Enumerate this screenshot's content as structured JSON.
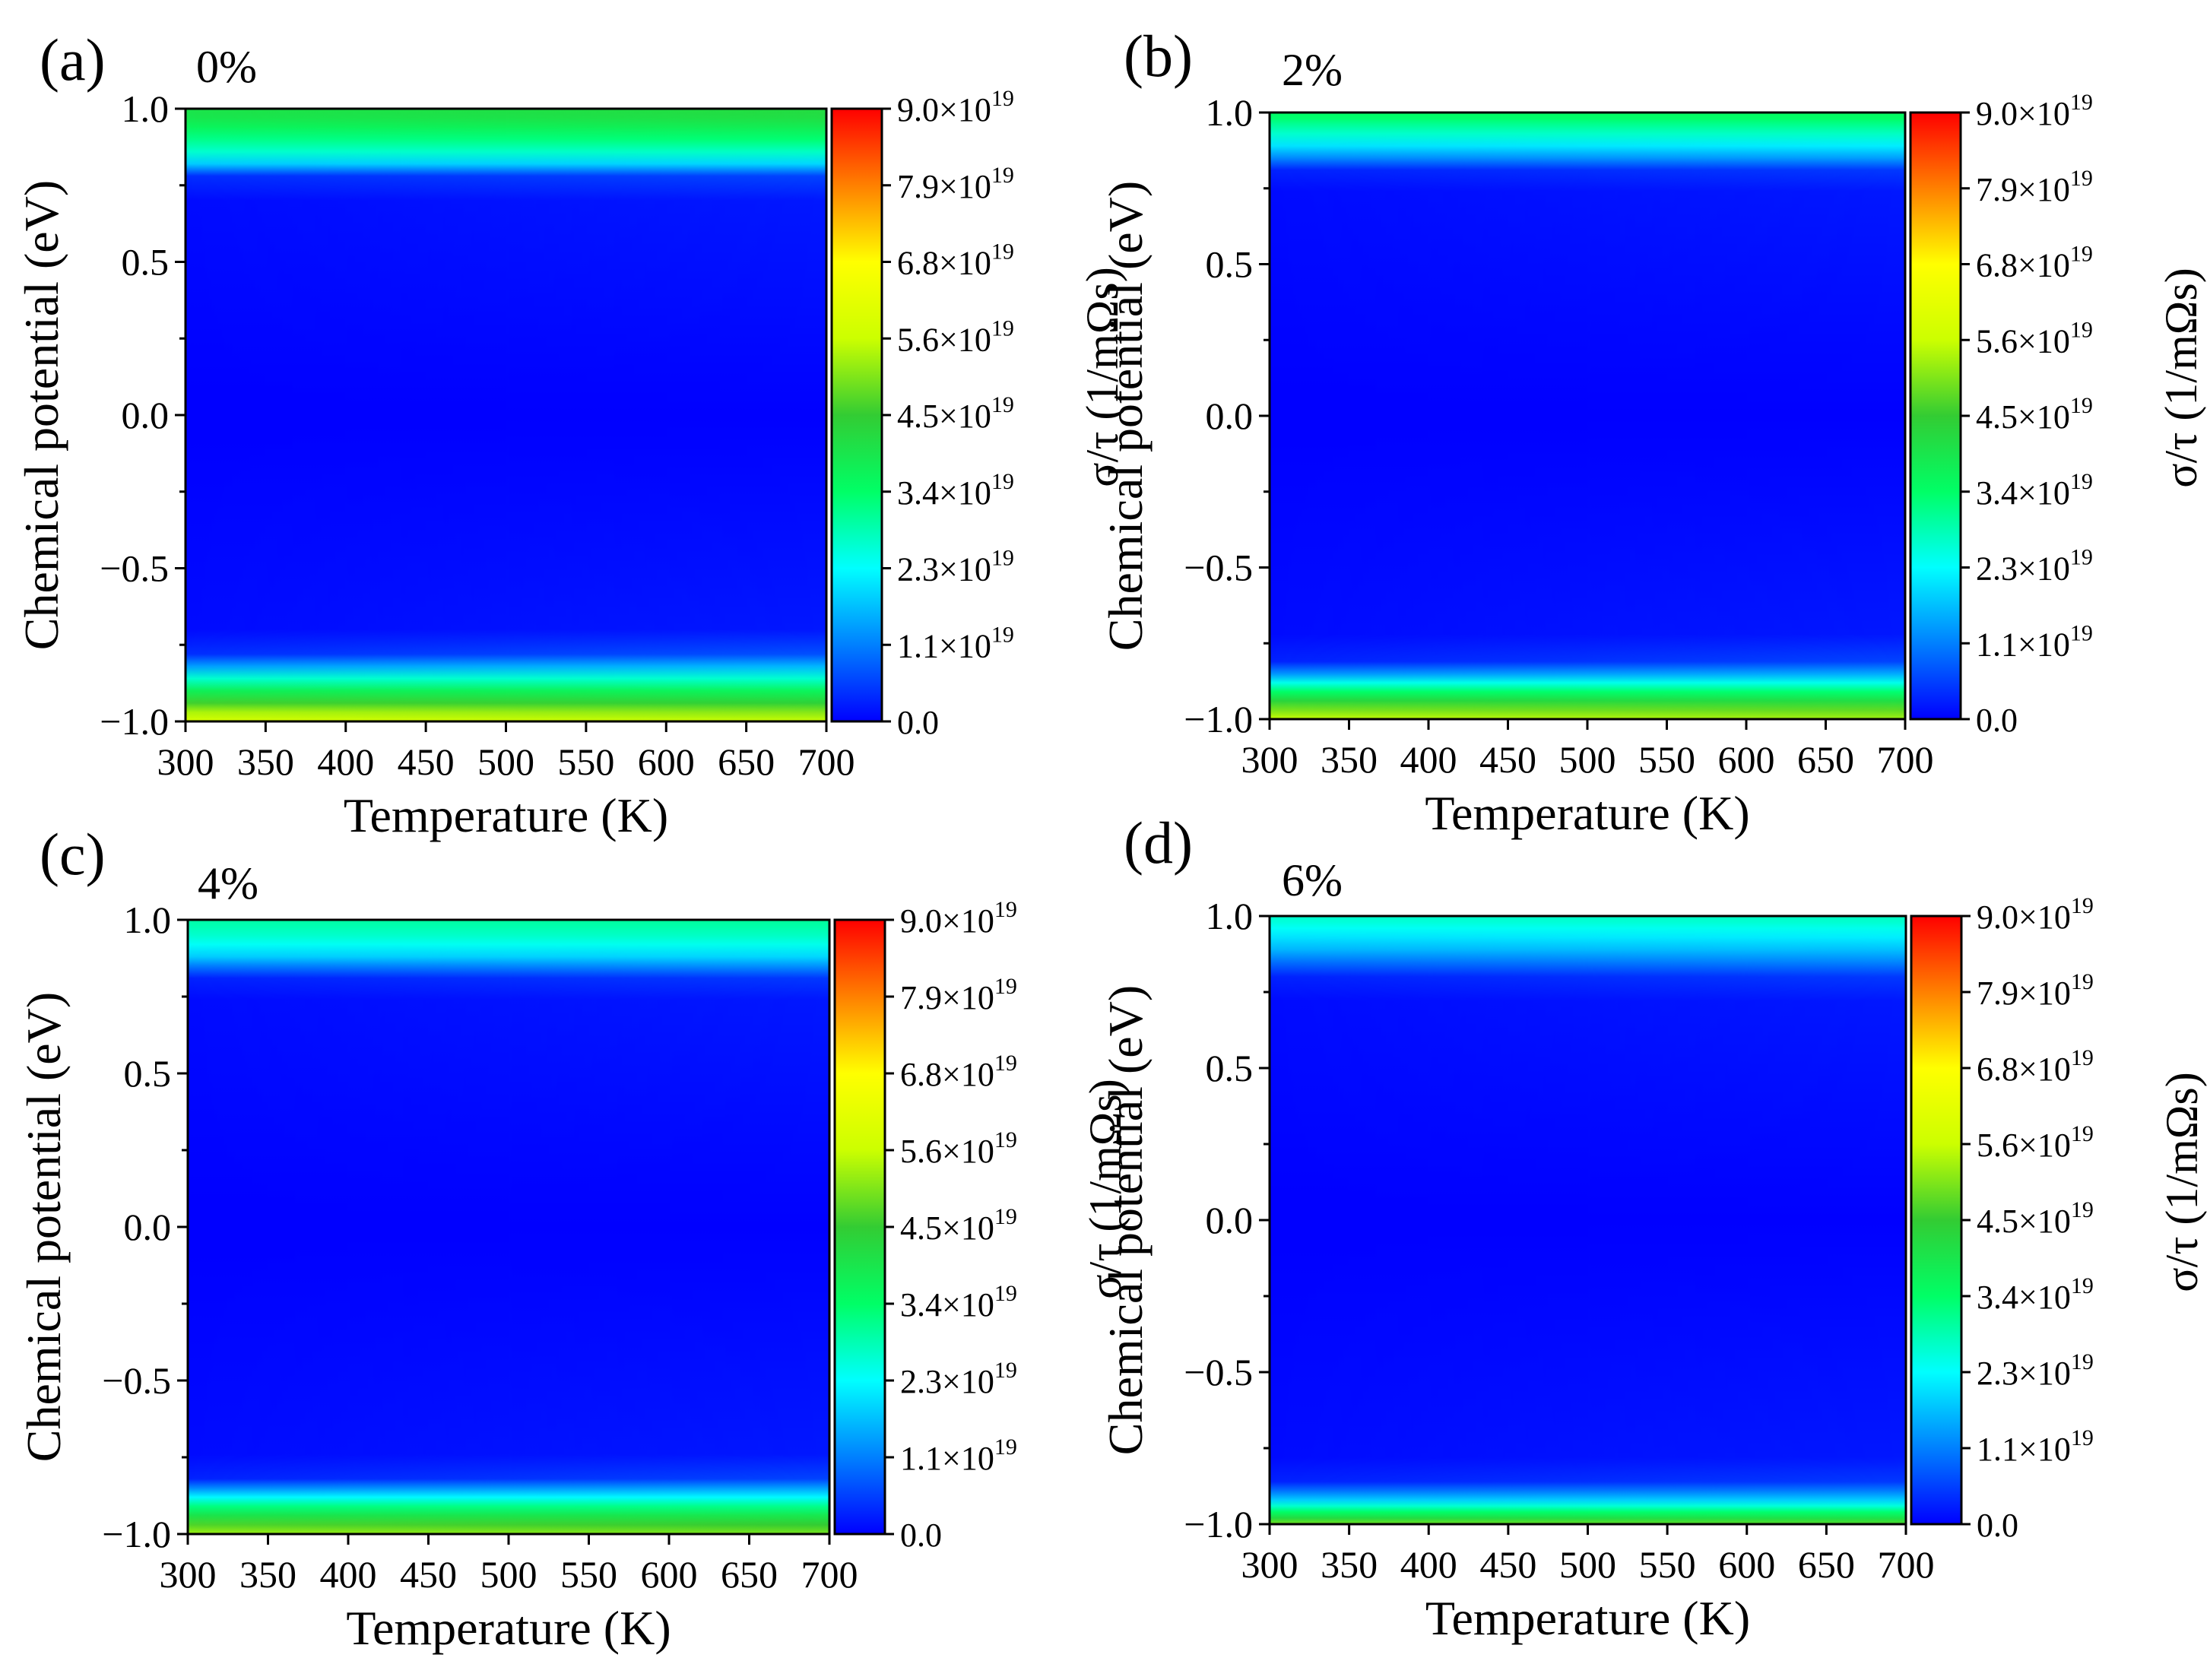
{
  "figure": {
    "colormap": {
      "name": "jet",
      "stops": [
        "#0000ff",
        "#0080ff",
        "#00ffff",
        "#00ff66",
        "#33cc33",
        "#ccff00",
        "#ffff00",
        "#ff8000",
        "#ff0000"
      ]
    }
  },
  "chart_data": [
    {
      "type": "heatmap",
      "panel_label": "(a)",
      "title": "0%",
      "xlabel": "Temperature (K)",
      "ylabel": "Chemical potential (eV)",
      "xlim": [
        300,
        700
      ],
      "ylim": [
        -1.0,
        1.0
      ],
      "x_ticks": [
        "300",
        "350",
        "400",
        "450",
        "500",
        "550",
        "600",
        "650",
        "700"
      ],
      "y_ticks": [
        "1.0",
        "0.5",
        "0.0",
        "−0.5",
        "−1.0"
      ],
      "colorbar": {
        "label": "σ/τ (1/mΩs)",
        "range": [
          0.0,
          9e+19
        ],
        "ticks": [
          "9.0×10",
          "7.9×10",
          "6.8×10",
          "5.6×10",
          "4.5×10",
          "3.4×10",
          "2.3×10",
          "1.1×10",
          "0.0"
        ],
        "tick_exponent": "19"
      },
      "mu_profile_eV": [
        -1.0,
        -0.97,
        -0.94,
        -0.9,
        -0.86,
        -0.82,
        -0.78,
        -0.7,
        0.0,
        0.7,
        0.78,
        0.82,
        0.86,
        0.9,
        0.94,
        0.97,
        1.0
      ],
      "value_profile_300K": [
        5.9e+19,
        5.4e+19,
        4.6e+19,
        3.7e+19,
        2.6e+19,
        1.4e+19,
        4e+18,
        1e+18,
        0.0,
        1e+18,
        4e+18,
        1.8e+19,
        2.6e+19,
        3.1e+19,
        3.6e+19,
        3.9e+19,
        4e+19
      ],
      "value_profile_700K": [
        5.6e+19,
        5.1e+19,
        4.4e+19,
        3.6e+19,
        2.6e+19,
        1.6e+19,
        7e+18,
        2e+18,
        0.0,
        2e+18,
        6e+18,
        1.9e+19,
        2.7e+19,
        3.3e+19,
        3.8e+19,
        4.1e+19,
        4.2e+19
      ]
    },
    {
      "type": "heatmap",
      "panel_label": "(b)",
      "title": "2%",
      "xlabel": "Temperature (K)",
      "ylabel": "Chemical potential (eV)",
      "xlim": [
        300,
        700
      ],
      "ylim": [
        -1.0,
        1.0
      ],
      "x_ticks": [
        "300",
        "350",
        "400",
        "450",
        "500",
        "550",
        "600",
        "650",
        "700"
      ],
      "y_ticks": [
        "1.0",
        "0.5",
        "0.0",
        "−0.5",
        "−1.0"
      ],
      "colorbar": {
        "label": "σ/τ (1/mΩs)",
        "range": [
          0.0,
          9e+19
        ],
        "ticks": [
          "9.0×10",
          "7.9×10",
          "6.8×10",
          "5.6×10",
          "4.5×10",
          "3.4×10",
          "2.3×10",
          "1.1×10",
          "0.0"
        ],
        "tick_exponent": "19"
      },
      "mu_profile_eV": [
        -1.0,
        -0.97,
        -0.94,
        -0.91,
        -0.88,
        -0.85,
        -0.81,
        -0.72,
        0.0,
        0.74,
        0.81,
        0.85,
        0.89,
        0.93,
        0.96,
        0.98,
        1.0
      ],
      "value_profile_300K": [
        5.6e+19,
        5e+19,
        4.3e+19,
        3.4e+19,
        2.4e+19,
        1.3e+19,
        3e+18,
        1e+18,
        0.0,
        1e+18,
        3e+18,
        1.2e+19,
        2e+19,
        2.6e+19,
        3e+19,
        3.3e+19,
        3.4e+19
      ],
      "value_profile_700K": [
        5.3e+19,
        4.8e+19,
        4.1e+19,
        3.3e+19,
        2.4e+19,
        1.5e+19,
        6e+18,
        2e+18,
        0.0,
        2e+18,
        5e+18,
        1.4e+19,
        2.1e+19,
        2.7e+19,
        3.1e+19,
        3.4e+19,
        3.5e+19
      ]
    },
    {
      "type": "heatmap",
      "panel_label": "(c)",
      "title": "4%",
      "xlabel": "Temperature (K)",
      "ylabel": "Chemical potential (eV)",
      "xlim": [
        300,
        700
      ],
      "ylim": [
        -1.0,
        1.0
      ],
      "x_ticks": [
        "300",
        "350",
        "400",
        "450",
        "500",
        "550",
        "600",
        "650",
        "700"
      ],
      "y_ticks": [
        "1.0",
        "0.5",
        "0.0",
        "−0.5",
        "−1.0"
      ],
      "colorbar": {
        "label": "σ/τ (1/mΩs)",
        "range": [
          0.0,
          9e+19
        ],
        "ticks": [
          "9.0×10",
          "7.9×10",
          "6.8×10",
          "5.6×10",
          "4.5×10",
          "3.4×10",
          "2.3×10",
          "1.1×10",
          "0.0"
        ],
        "tick_exponent": "19"
      },
      "mu_profile_eV": [
        -1.0,
        -0.97,
        -0.94,
        -0.91,
        -0.88,
        -0.85,
        -0.82,
        -0.74,
        0.0,
        0.74,
        0.81,
        0.85,
        0.88,
        0.92,
        0.95,
        0.98,
        1.0
      ],
      "value_profile_300K": [
        5.3e+19,
        4.7e+19,
        4e+19,
        3.2e+19,
        2.2e+19,
        1.2e+19,
        3e+18,
        1e+18,
        0.0,
        1e+18,
        3e+18,
        1.1e+19,
        1.8e+19,
        2.3e+19,
        2.6e+19,
        2.8e+19,
        2.9e+19
      ],
      "value_profile_700K": [
        5e+19,
        4.5e+19,
        3.9e+19,
        3.1e+19,
        2.2e+19,
        1.4e+19,
        6e+18,
        2e+18,
        0.0,
        2e+18,
        5e+18,
        1.3e+19,
        1.9e+19,
        2.4e+19,
        2.7e+19,
        2.9e+19,
        3e+19
      ]
    },
    {
      "type": "heatmap",
      "panel_label": "(d)",
      "title": "6%",
      "xlabel": "Temperature (K)",
      "ylabel": "Chemical potential (eV)",
      "xlim": [
        300,
        700
      ],
      "ylim": [
        -1.0,
        1.0
      ],
      "x_ticks": [
        "300",
        "350",
        "400",
        "450",
        "500",
        "550",
        "600",
        "650",
        "700"
      ],
      "y_ticks": [
        "1.0",
        "0.5",
        "0.0",
        "−0.5",
        "−1.0"
      ],
      "colorbar": {
        "label": "σ/τ (1/mΩs)",
        "range": [
          0.0,
          9e+19
        ],
        "ticks": [
          "9.0×10",
          "7.9×10",
          "6.8×10",
          "5.6×10",
          "4.5×10",
          "3.4×10",
          "2.3×10",
          "1.1×10",
          "0.0"
        ],
        "tick_exponent": "19"
      },
      "mu_profile_eV": [
        -1.0,
        -0.98,
        -0.96,
        -0.94,
        -0.92,
        -0.89,
        -0.86,
        -0.78,
        0.0,
        0.72,
        0.8,
        0.85,
        0.89,
        0.93,
        0.96,
        0.98,
        1.0
      ],
      "value_profile_300K": [
        5e+19,
        4.2e+19,
        3.4e+19,
        2.6e+19,
        1.8e+19,
        1e+19,
        3e+18,
        1e+18,
        0.0,
        1e+18,
        3e+18,
        1e+19,
        1.6e+19,
        2e+19,
        2.3e+19,
        2.5e+19,
        2.6e+19
      ],
      "value_profile_700K": [
        4.7e+19,
        4e+19,
        3.3e+19,
        2.5e+19,
        1.8e+19,
        1.1e+19,
        5e+18,
        2e+18,
        0.0,
        2e+18,
        5e+18,
        1.2e+19,
        1.7e+19,
        2.1e+19,
        2.4e+19,
        2.6e+19,
        2.7e+19
      ]
    }
  ]
}
